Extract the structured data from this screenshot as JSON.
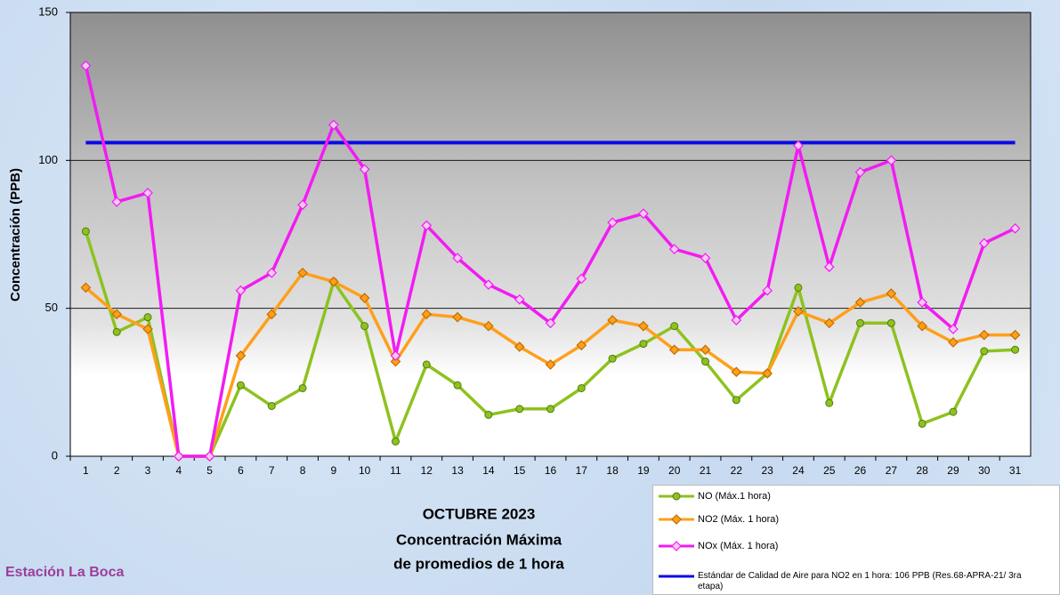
{
  "chart_data": {
    "type": "line",
    "y_label": "Concentración  (PPB)",
    "title_lines": [
      "OCTUBRE 2023",
      "Concentración Máxima",
      "de promedios de 1 hora"
    ],
    "station": "Estación La Boca",
    "categories": [
      "1",
      "2",
      "3",
      "4",
      "5",
      "6",
      "7",
      "8",
      "9",
      "10",
      "11",
      "12",
      "13",
      "14",
      "15",
      "16",
      "17",
      "18",
      "19",
      "20",
      "21",
      "22",
      "23",
      "24",
      "25",
      "26",
      "27",
      "28",
      "29",
      "30",
      "31"
    ],
    "series": [
      {
        "name": "NO (Máx.1 hora)",
        "color": "#8dc21f",
        "marker": "circle",
        "values": [
          76,
          42,
          47,
          0,
          0,
          24,
          17,
          23,
          59,
          44,
          5,
          31,
          24,
          14,
          16,
          16,
          23,
          33,
          38,
          44,
          32,
          19,
          28,
          57,
          18,
          45,
          45,
          11,
          15,
          35.5,
          36
        ]
      },
      {
        "name": "NO2 (Máx. 1 hora)",
        "color": "#ff9f1a",
        "marker": "diamond",
        "values": [
          57,
          48,
          43,
          0,
          0,
          34,
          48,
          62,
          59,
          53.5,
          32,
          48,
          47,
          44,
          37,
          31,
          37.5,
          46,
          44,
          36,
          36,
          28.5,
          28,
          49,
          45,
          52,
          55,
          44,
          38.5,
          41,
          41
        ]
      },
      {
        "name": "NOx (Máx. 1 hora)",
        "color": "#f21cf2",
        "marker": "diamond-open",
        "values": [
          132,
          86,
          89,
          0,
          0,
          56,
          62,
          85,
          112,
          97,
          34,
          78,
          67,
          58,
          53,
          45,
          60,
          79,
          82,
          70,
          67,
          46,
          56,
          105,
          64,
          96,
          100,
          52,
          43,
          72,
          77
        ]
      }
    ],
    "standard": {
      "name": "Estándar de Calidad de Aire para NO2 en 1 hora: 106  PPB (Res.68-APRA-21/ 3ra etapa)",
      "color": "#0a0ae6",
      "value": 106
    },
    "ylim": [
      0,
      150
    ],
    "yticks": [
      0,
      50,
      100,
      150
    ],
    "grid": true
  }
}
